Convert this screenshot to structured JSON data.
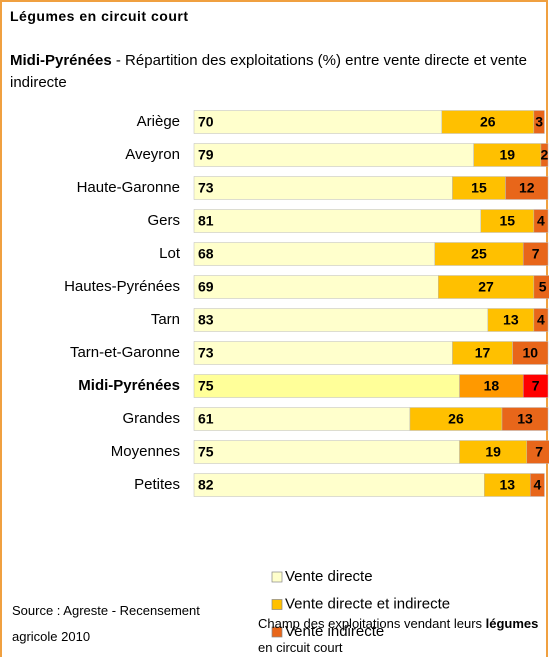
{
  "chart_data": {
    "type": "stacked_bar_horizontal",
    "title": "Légumes en circuit court",
    "subtitle_bold": "Midi-Pyrénées",
    "subtitle": " - Répartition des exploitations (%) entre vente directe et vente indirecte",
    "categories": [
      "Ariège",
      "Aveyron",
      "Haute-Garonne",
      "Gers",
      "Lot",
      "Hautes-Pyrénées",
      "Tarn",
      "Tarn-et-Garonne",
      "Midi-Pyrénées",
      "Grandes",
      "Moyennes",
      "Petites"
    ],
    "series": [
      {
        "name": "Vente directe",
        "color": "#ffffcc",
        "values": [
          70,
          79,
          73,
          81,
          68,
          69,
          83,
          73,
          75,
          61,
          75,
          82
        ]
      },
      {
        "name": "Vente directe et indirecte",
        "color": "#ffc000",
        "values": [
          26,
          19,
          15,
          15,
          25,
          27,
          13,
          17,
          18,
          26,
          19,
          13
        ]
      },
      {
        "name": "Vente indirecte",
        "color": "#e8661a",
        "values": [
          3,
          2,
          12,
          4,
          7,
          5,
          4,
          10,
          7,
          13,
          7,
          4
        ]
      }
    ],
    "highlight_index": 8,
    "highlight_colors": [
      "#ffff99",
      "#ff9900",
      "#ff0000"
    ],
    "xlim": [
      0,
      100
    ],
    "source": "Source : Agreste - Recensement agricole 2010",
    "note": [
      "Champ des exploitations vendant leurs ",
      "légumes",
      " en circuit court"
    ]
  }
}
